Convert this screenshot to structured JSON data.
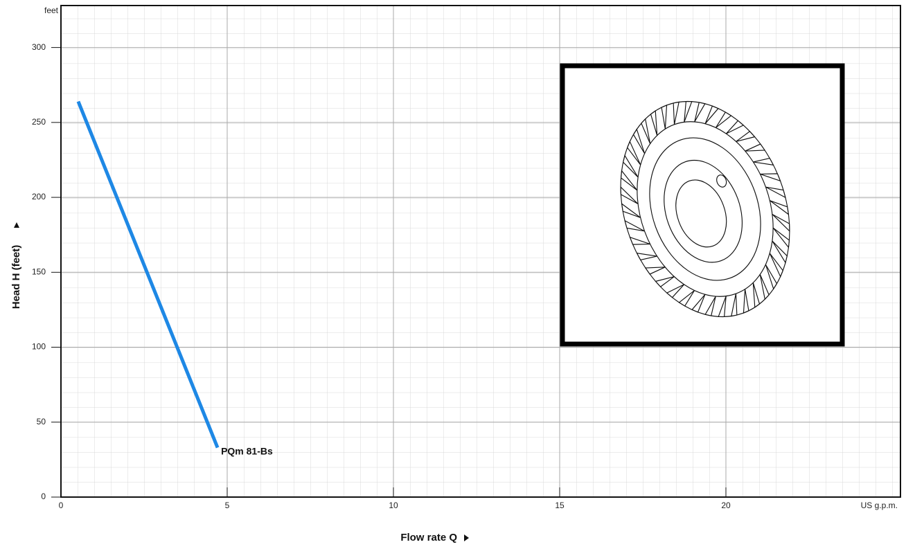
{
  "chart_data": {
    "type": "line",
    "x_label": "Flow rate  Q",
    "y_label": "Head H  (feet)",
    "x_unit": "US g.p.m.",
    "y_unit": "feet",
    "xlim": [
      0,
      25.25
    ],
    "ylim": [
      0,
      328
    ],
    "xticks": [
      0,
      5,
      10,
      15,
      20
    ],
    "yticks": [
      0,
      50,
      100,
      150,
      200,
      250,
      300
    ],
    "grid": true,
    "series": [
      {
        "name": "PQm 81-Bs",
        "color": "#1e88e5",
        "x": [
          0.52,
          4.71
        ],
        "values": [
          264,
          33
        ]
      }
    ]
  }
}
